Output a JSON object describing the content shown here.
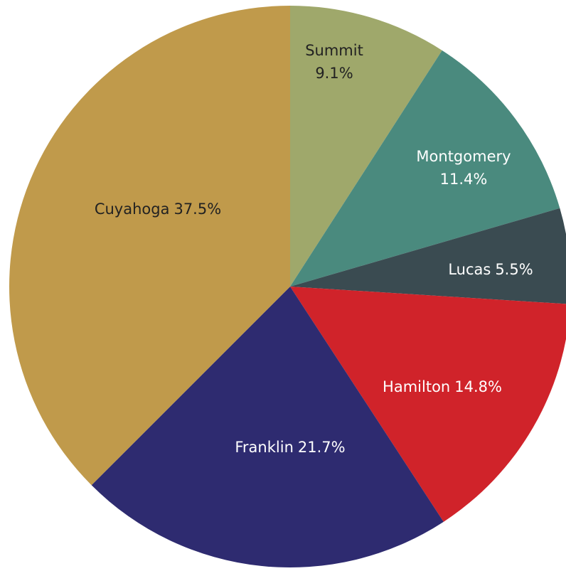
{
  "chart_data": {
    "type": "pie",
    "categories": [
      "Summit",
      "Montgomery",
      "Lucas",
      "Hamilton",
      "Franklin",
      "Cuyahoga"
    ],
    "values": [
      9.1,
      11.4,
      5.5,
      14.8,
      21.7,
      37.5
    ],
    "value_labels": [
      "9.1%",
      "11.4%",
      "5.5%",
      "14.8%",
      "21.7%",
      "37.5%"
    ],
    "colors": [
      "#9fa86b",
      "#4a8a7e",
      "#3a4b51",
      "#d0232a",
      "#2e2b70",
      "#c09a4b"
    ]
  }
}
